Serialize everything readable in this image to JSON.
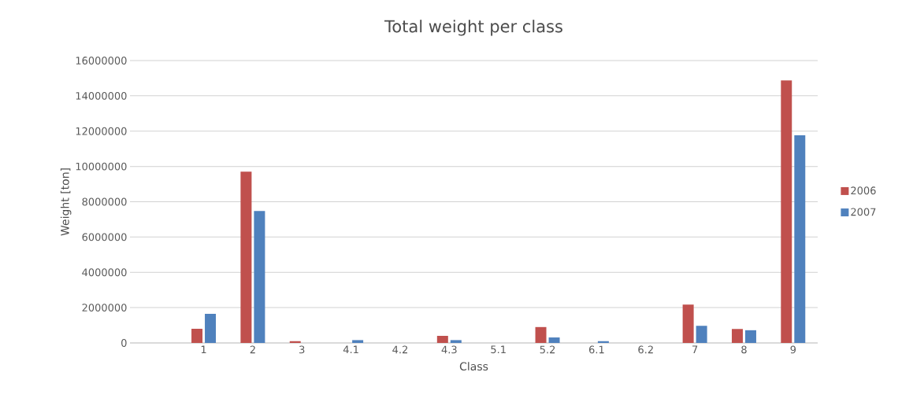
{
  "chart_data": {
    "type": "bar",
    "title": "Total weight per class",
    "xlabel": "Class",
    "ylabel": "Weight [ton]",
    "categories": [
      null,
      "1",
      "2",
      "3",
      "4.1",
      "4.2",
      "4.3",
      "5.1",
      "5.2",
      "6.1",
      "6.2",
      "7",
      "8",
      "9"
    ],
    "series": [
      {
        "name": "2006",
        "color": "#c0504d",
        "values": [
          0,
          800000,
          9710000,
          100000,
          0,
          0,
          400000,
          0,
          900000,
          0,
          0,
          2170000,
          790000,
          14880000
        ]
      },
      {
        "name": "2007",
        "color": "#4f81bd",
        "values": [
          0,
          1650000,
          7480000,
          0,
          160000,
          0,
          160000,
          0,
          310000,
          100000,
          0,
          970000,
          720000,
          11770000
        ]
      }
    ],
    "ylim": [
      0,
      16000000
    ],
    "yticks": [
      0,
      2000000,
      4000000,
      6000000,
      8000000,
      10000000,
      12000000,
      14000000,
      16000000
    ],
    "grid": "y",
    "legend": "right"
  }
}
